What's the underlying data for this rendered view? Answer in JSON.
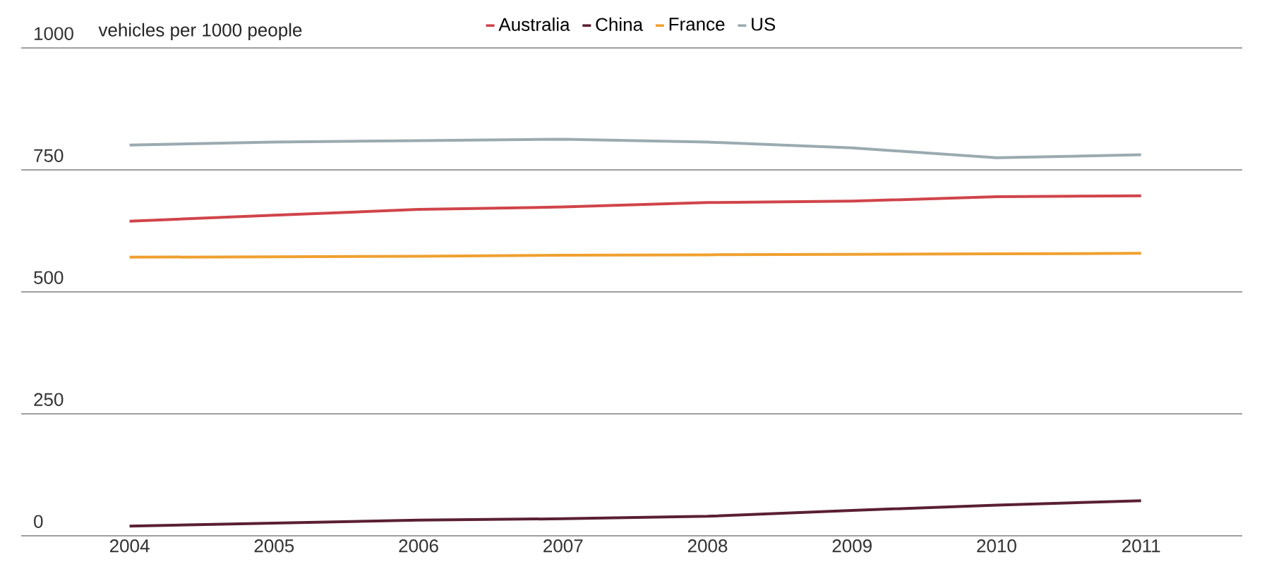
{
  "chart_data": {
    "type": "line",
    "ylabel": "vehicles per 1000 people",
    "x": [
      2004,
      2005,
      2006,
      2007,
      2008,
      2009,
      2010,
      2011
    ],
    "series": [
      {
        "name": "Australia",
        "color": "#d0444a",
        "values": [
          645,
          657,
          669,
          674,
          683,
          686,
          695,
          697
        ]
      },
      {
        "name": "China",
        "color": "#5a1f33",
        "values": [
          20,
          26,
          32,
          35,
          40,
          52,
          63,
          72
        ]
      },
      {
        "name": "France",
        "color": "#f0a030",
        "values": [
          571,
          572,
          573,
          575,
          576,
          577,
          578,
          579
        ]
      },
      {
        "name": "US",
        "color": "#9aabb0",
        "values": [
          801,
          807,
          810,
          813,
          807,
          795,
          775,
          781
        ]
      }
    ],
    "xlim": [
      2003.25,
      2011.7
    ],
    "ylim": [
      0,
      1000
    ],
    "xticks": [
      2004,
      2005,
      2006,
      2007,
      2008,
      2009,
      2010,
      2011
    ],
    "yticks": [
      0,
      250,
      500,
      750,
      1000
    ],
    "grid": "y",
    "legend": "top",
    "marker": "none",
    "line_style": "solid"
  }
}
